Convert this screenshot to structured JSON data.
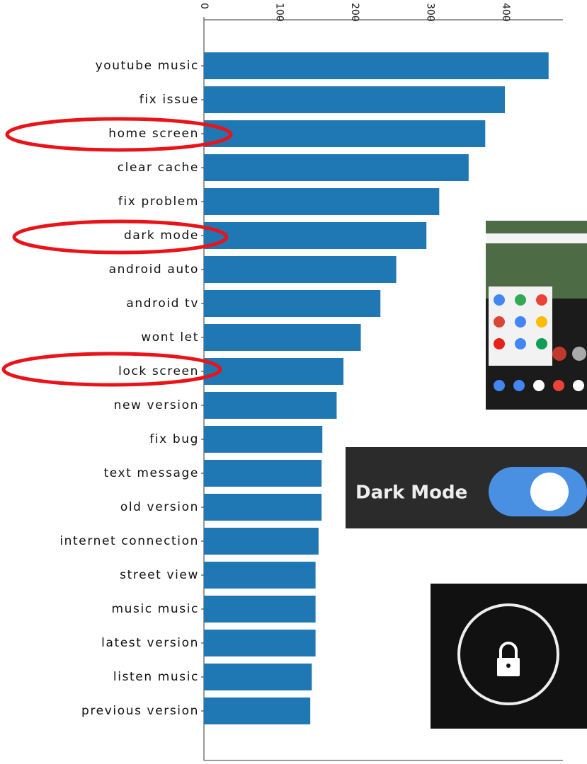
{
  "chart_data": {
    "type": "barh",
    "categories": [
      "youtube music",
      "fix issue",
      "home screen",
      "clear cache",
      "fix problem",
      "dark mode",
      "android auto",
      "android tv",
      "wont let",
      "lock screen",
      "new version",
      "fix bug",
      "text message",
      "old version",
      "internet connection",
      "street view",
      "music music",
      "latest version",
      "listen music",
      "previous version"
    ],
    "values": [
      457,
      399,
      373,
      351,
      312,
      295,
      255,
      234,
      208,
      185,
      176,
      157,
      156,
      156,
      152,
      148,
      148,
      148,
      143,
      141
    ],
    "color": "#1f77b4",
    "xlim": [
      0,
      476
    ],
    "xticks": [
      0,
      100,
      200,
      300,
      400
    ],
    "grid": false,
    "annotations": [
      "Dark Mode"
    ]
  }
}
